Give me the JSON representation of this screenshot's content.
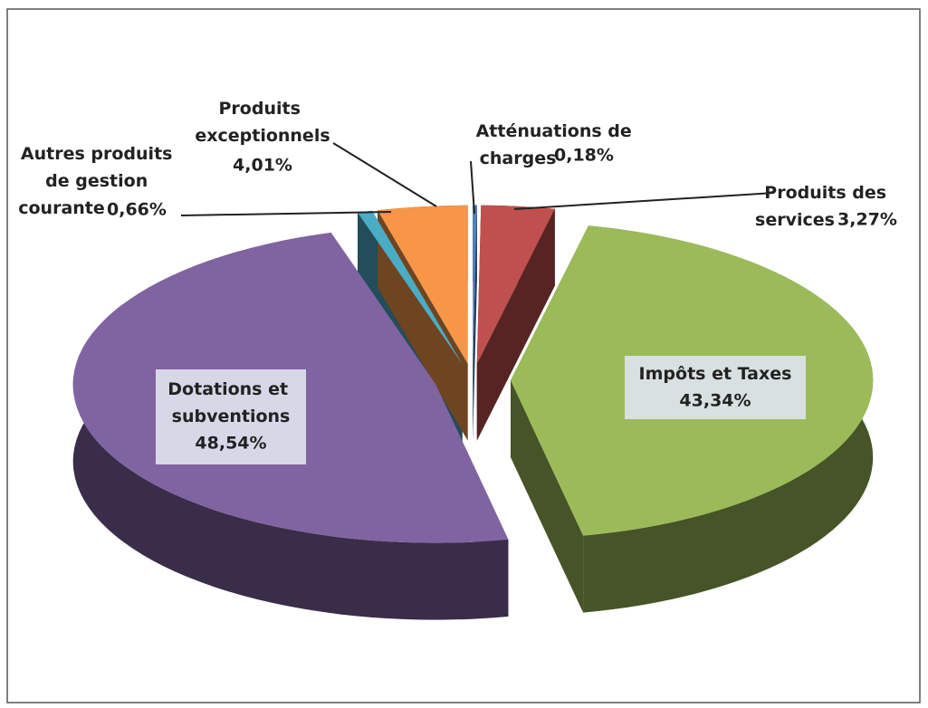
{
  "chart_data": {
    "type": "pie",
    "categories": [
      "Atténuations de charges :",
      "Produits des services :",
      "Impôts et Taxes :",
      "Dotations et subventions :",
      "Autres produits de gestion courante :",
      "Produits exceptionnels :"
    ],
    "values": [
      0.18,
      3.27,
      43.34,
      48.54,
      0.66,
      4.01
    ],
    "value_labels": [
      "0,18%",
      "3,27%",
      "43,34%",
      "48,54%",
      "0,66%",
      "4,01%"
    ],
    "colors": [
      "#4f81bd",
      "#c0504d",
      "#9bbb59",
      "#8064a2",
      "#4bacc6",
      "#f79646"
    ]
  }
}
